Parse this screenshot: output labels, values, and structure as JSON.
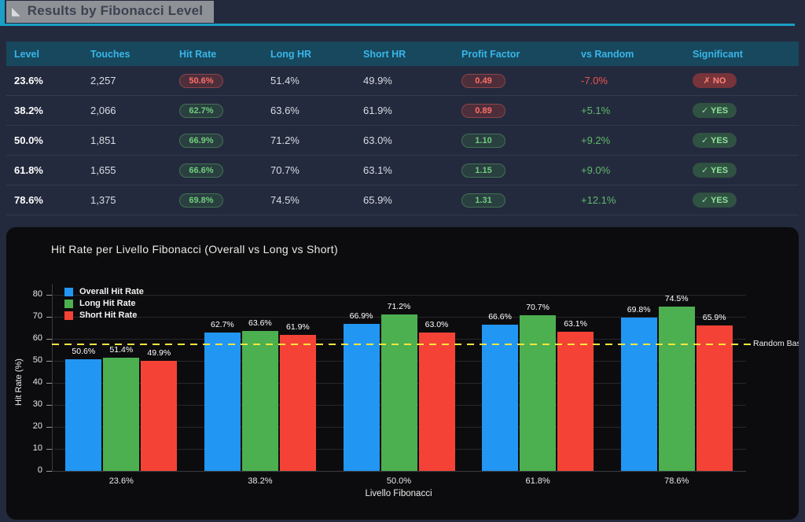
{
  "page": {
    "title": "Results by Fibonacci Level"
  },
  "colors": {
    "accent_cyan": "#1a9fc6",
    "page_bg": "#242a3d",
    "panel_bg": "#0c0c0e",
    "table_header_bg": "#17485e",
    "table_header_text": "#38b6e8",
    "positive_green": "#66bb6a",
    "negative_red": "#ef5350",
    "bar_blue": "#2196f3",
    "bar_green": "#4caf50",
    "bar_red": "#f44336",
    "baseline_yellow": "#ffe53b"
  },
  "table": {
    "columns": [
      "Level",
      "Touches",
      "Hit Rate",
      "Long HR",
      "Short HR",
      "Profit Factor",
      "vs Random",
      "Significant"
    ],
    "rows": [
      {
        "level": "23.6%",
        "touches": "2,257",
        "hit_rate": "50.6%",
        "hit_status": "neg",
        "long_hr": "51.4%",
        "short_hr": "49.9%",
        "profit_factor": "0.49",
        "pf_status": "neg",
        "vs_random": "-7.0%",
        "vsr_status": "neg",
        "significant": "✗ NO",
        "sig_status": "neg"
      },
      {
        "level": "38.2%",
        "touches": "2,066",
        "hit_rate": "62.7%",
        "hit_status": "pos",
        "long_hr": "63.6%",
        "short_hr": "61.9%",
        "profit_factor": "0.89",
        "pf_status": "neg",
        "vs_random": "+5.1%",
        "vsr_status": "pos",
        "significant": "✓ YES",
        "sig_status": "pos"
      },
      {
        "level": "50.0%",
        "touches": "1,851",
        "hit_rate": "66.9%",
        "hit_status": "pos",
        "long_hr": "71.2%",
        "short_hr": "63.0%",
        "profit_factor": "1.10",
        "pf_status": "pos",
        "vs_random": "+9.2%",
        "vsr_status": "pos",
        "significant": "✓ YES",
        "sig_status": "pos"
      },
      {
        "level": "61.8%",
        "touches": "1,655",
        "hit_rate": "66.6%",
        "hit_status": "pos",
        "long_hr": "70.7%",
        "short_hr": "63.1%",
        "profit_factor": "1.15",
        "pf_status": "pos",
        "vs_random": "+9.0%",
        "vsr_status": "pos",
        "significant": "✓ YES",
        "sig_status": "pos"
      },
      {
        "level": "78.6%",
        "touches": "1,375",
        "hit_rate": "69.8%",
        "hit_status": "pos",
        "long_hr": "74.5%",
        "short_hr": "65.9%",
        "profit_factor": "1.31",
        "pf_status": "pos",
        "vs_random": "+12.1%",
        "vsr_status": "pos",
        "significant": "✓ YES",
        "sig_status": "pos"
      }
    ]
  },
  "chart_data": {
    "type": "bar",
    "title": "Hit Rate per Livello Fibonacci (Overall vs Long vs Short)",
    "xlabel": "Livello Fibonacci",
    "ylabel": "Hit Rate (%)",
    "categories": [
      "23.6%",
      "38.2%",
      "50.0%",
      "61.8%",
      "78.6%"
    ],
    "series": [
      {
        "name": "Overall Hit Rate",
        "color": "#2196f3",
        "values": [
          50.6,
          62.7,
          66.9,
          66.6,
          69.8
        ]
      },
      {
        "name": "Long Hit Rate",
        "color": "#4caf50",
        "values": [
          51.4,
          63.6,
          71.2,
          70.7,
          74.5
        ]
      },
      {
        "name": "Short Hit Rate",
        "color": "#f44336",
        "values": [
          49.9,
          61.9,
          63.0,
          63.1,
          65.9
        ]
      }
    ],
    "baseline": {
      "value": 57.6,
      "label": "Random Baseline",
      "color": "#ffe53b",
      "style": "dashed"
    },
    "ylim": [
      0,
      80
    ],
    "yticks": [
      0,
      10,
      20,
      30,
      40,
      50,
      60,
      70,
      80
    ],
    "grid": true,
    "legend_position": "upper-left"
  }
}
